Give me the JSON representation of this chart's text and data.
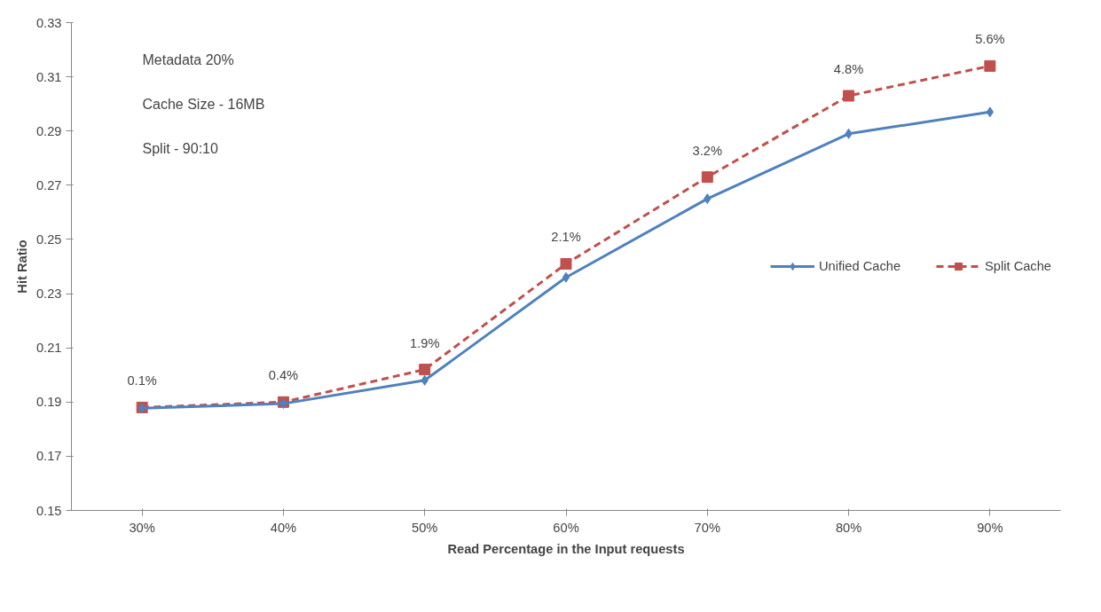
{
  "chart_data": {
    "type": "line",
    "xlabel": "Read Percentage in the Input requests",
    "ylabel": "Hit Ratio",
    "categories": [
      "30%",
      "40%",
      "50%",
      "60%",
      "70%",
      "80%",
      "90%"
    ],
    "series": [
      {
        "name": "Unified Cache",
        "color": "#4f81bd",
        "marker": "diamond",
        "line_style": "solid",
        "values": [
          0.1877,
          0.1894,
          0.198,
          0.236,
          0.265,
          0.289,
          0.297
        ]
      },
      {
        "name": "Split Cache",
        "color": "#c0504d",
        "marker": "square",
        "line_style": "dashed",
        "values": [
          0.188,
          0.19,
          0.202,
          0.241,
          0.273,
          0.303,
          0.314
        ]
      }
    ],
    "ylim": [
      0.15,
      0.33
    ],
    "yticks": [
      0.15,
      0.17,
      0.19,
      0.21,
      0.23,
      0.25,
      0.27,
      0.29,
      0.31,
      0.33
    ],
    "grid": false,
    "legend": "right",
    "annotations": [
      "Metadata 20%",
      "Cache Size - 16MB",
      "Split - 90:10",
      {
        "text": "0.1%",
        "x": "30%",
        "y": 0.188
      },
      {
        "text": "0.4%",
        "x": "40%",
        "y": 0.19
      },
      {
        "text": "1.9%",
        "x": "50%",
        "y": 0.202
      },
      {
        "text": "2.1%",
        "x": "60%",
        "y": 0.241
      },
      {
        "text": "3.2%",
        "x": "70%",
        "y": 0.273
      },
      {
        "text": "4.8%",
        "x": "80%",
        "y": 0.303
      },
      {
        "text": "5.6%",
        "x": "90%",
        "y": 0.314
      }
    ]
  }
}
